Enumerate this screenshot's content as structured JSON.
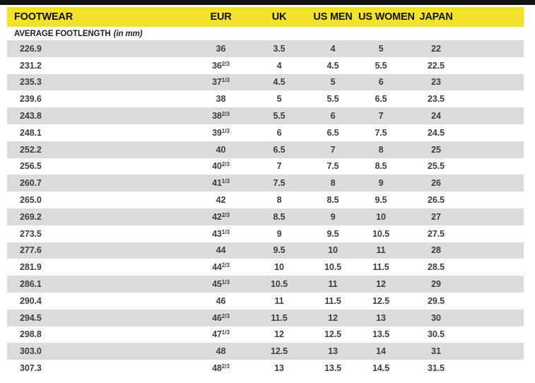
{
  "header": {
    "columns": [
      "FOOTWEAR",
      "EUR",
      "UK",
      "US MEN",
      "US WOMEN",
      "JAPAN"
    ]
  },
  "subtitle": {
    "text": "AVERAGE FOOTLENGTH",
    "note": "(in mm)"
  },
  "table": {
    "column_keys": [
      "footlength_mm",
      "eur",
      "uk",
      "us_men",
      "us_women",
      "japan"
    ],
    "rows": [
      [
        "226.9",
        "36",
        "3.5",
        "4",
        "5",
        "22"
      ],
      [
        "231.2",
        "36^2/3",
        "4",
        "4.5",
        "5.5",
        "22.5"
      ],
      [
        "235.3",
        "37^1/3",
        "4.5",
        "5",
        "6",
        "23"
      ],
      [
        "239.6",
        "38",
        "5",
        "5.5",
        "6.5",
        "23.5"
      ],
      [
        "243.8",
        "38^2/3",
        "5.5",
        "6",
        "7",
        "24"
      ],
      [
        "248.1",
        "39^1/3",
        "6",
        "6.5",
        "7.5",
        "24.5"
      ],
      [
        "252.2",
        "40",
        "6.5",
        "7",
        "8",
        "25"
      ],
      [
        "256.5",
        "40^2/3",
        "7",
        "7.5",
        "8.5",
        "25.5"
      ],
      [
        "260.7",
        "41^1/3",
        "7.5",
        "8",
        "9",
        "26"
      ],
      [
        "265.0",
        "42",
        "8",
        "8.5",
        "9.5",
        "26.5"
      ],
      [
        "269.2",
        "42^2/3",
        "8.5",
        "9",
        "10",
        "27"
      ],
      [
        "273.5",
        "43^1/3",
        "9",
        "9.5",
        "10.5",
        "27.5"
      ],
      [
        "277.6",
        "44",
        "9.5",
        "10",
        "11",
        "28"
      ],
      [
        "281.9",
        "44^2/3",
        "10",
        "10.5",
        "11.5",
        "28.5"
      ],
      [
        "286.1",
        "45^1/3",
        "10.5",
        "11",
        "12",
        "29"
      ],
      [
        "290.4",
        "46",
        "11",
        "11.5",
        "12.5",
        "29.5"
      ],
      [
        "294.5",
        "46^2/3",
        "11.5",
        "12",
        "13",
        "30"
      ],
      [
        "298.8",
        "47^1/3",
        "12",
        "12.5",
        "13.5",
        "30.5"
      ],
      [
        "303.0",
        "48",
        "12.5",
        "13",
        "14",
        "31"
      ],
      [
        "307.3",
        "48^2/3",
        "13",
        "13.5",
        "14.5",
        "31.5"
      ]
    ]
  },
  "colors": {
    "accent_yellow": "#f3e22b",
    "row_gray": "#dcdcdc",
    "top_bar": "#131313",
    "data_text": "#3d3d3d"
  }
}
